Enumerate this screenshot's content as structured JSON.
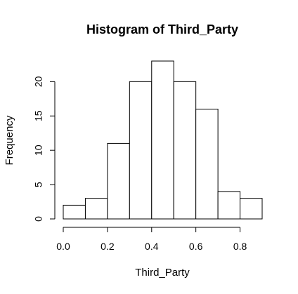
{
  "chart_data": {
    "type": "bar",
    "title": "Histogram of Third_Party",
    "xlabel": "Third_Party",
    "ylabel": "Frequency",
    "bins": [
      {
        "x0": 0.0,
        "x1": 0.1,
        "count": 2
      },
      {
        "x0": 0.1,
        "x1": 0.2,
        "count": 3
      },
      {
        "x0": 0.2,
        "x1": 0.3,
        "count": 11
      },
      {
        "x0": 0.3,
        "x1": 0.4,
        "count": 20
      },
      {
        "x0": 0.4,
        "x1": 0.5,
        "count": 23
      },
      {
        "x0": 0.5,
        "x1": 0.6,
        "count": 20
      },
      {
        "x0": 0.6,
        "x1": 0.7,
        "count": 16
      },
      {
        "x0": 0.7,
        "x1": 0.8,
        "count": 4
      },
      {
        "x0": 0.8,
        "x1": 0.9,
        "count": 3
      }
    ],
    "xlim": [
      0.0,
      0.9
    ],
    "ylim": [
      0,
      23
    ],
    "x_ticks": [
      0.0,
      0.2,
      0.4,
      0.6,
      0.8
    ],
    "x_tick_labels": [
      "0.0",
      "0.2",
      "0.4",
      "0.6",
      "0.8"
    ],
    "y_ticks": [
      0,
      5,
      10,
      15,
      20
    ],
    "y_tick_labels": [
      "0",
      "5",
      "10",
      "15",
      "20"
    ],
    "bar_fill": "#ffffff",
    "bar_stroke": "#000000",
    "grid": false,
    "legend": "none"
  }
}
